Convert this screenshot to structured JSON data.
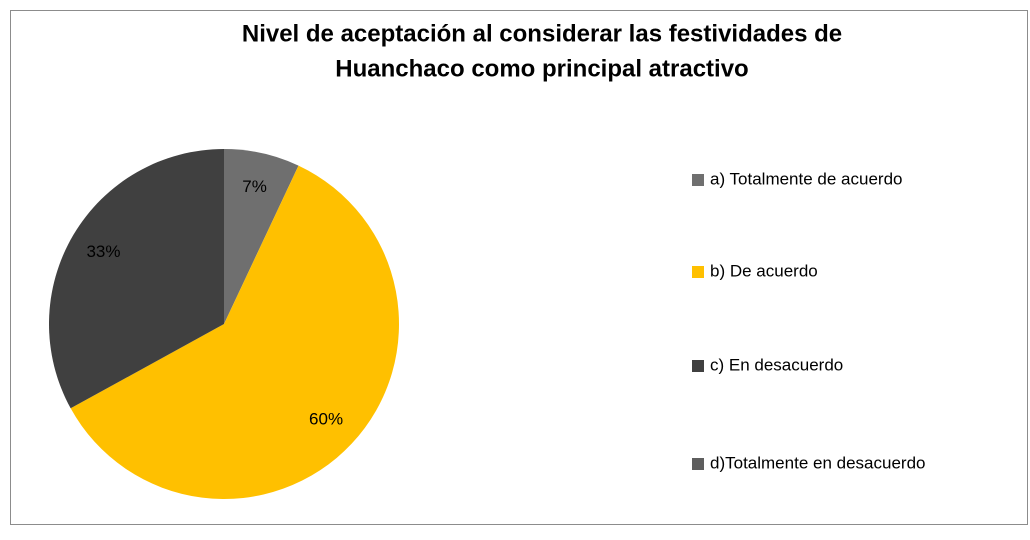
{
  "chart_data": {
    "type": "pie",
    "title": [
      "Nivel de aceptación  al considerar  las festividades de",
      "Huanchaco  como principal atractivo"
    ],
    "categories": [
      "a) Totalmente de acuerdo",
      "b) De acuerdo",
      "c) En desacuerdo",
      "d)Totalmente en desacuerdo"
    ],
    "values": [
      7,
      60,
      33,
      0
    ],
    "value_labels": [
      "7%",
      "60%",
      "33%",
      null
    ],
    "colors": [
      "#6f6f6f",
      "#ffc000",
      "#404040",
      "#5e5e5e"
    ],
    "legend": "right"
  }
}
